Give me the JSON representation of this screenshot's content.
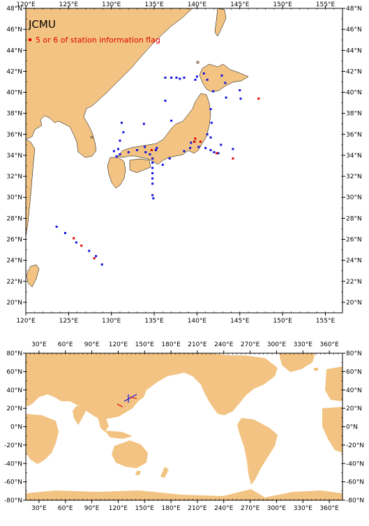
{
  "map1": {
    "title": "JCMU",
    "legend_label": "5 or 6 of station information flag",
    "legend_color": "#e00000",
    "land_color": "#f2c382",
    "lon_ticks": [
      "120°E",
      "125°E",
      "130°E",
      "135°E",
      "140°E",
      "145°E",
      "150°E",
      "155°E"
    ],
    "lat_ticks": [
      "20°N",
      "22°N",
      "24°N",
      "26°N",
      "28°N",
      "30°N",
      "32°N",
      "34°N",
      "36°N",
      "38°N",
      "40°N",
      "42°N",
      "44°N",
      "46°N",
      "48°N"
    ],
    "lon_range": [
      120,
      157
    ],
    "lat_range": [
      19,
      48
    ],
    "blue_stations": [
      [
        123.6,
        27.2
      ],
      [
        124.6,
        26.6
      ],
      [
        125.9,
        25.7
      ],
      [
        127.4,
        24.9
      ],
      [
        128.2,
        24.4
      ],
      [
        128.9,
        23.6
      ],
      [
        131.2,
        37.1
      ],
      [
        131.4,
        36.2
      ],
      [
        131.0,
        35.4
      ],
      [
        130.8,
        34.6
      ],
      [
        130.3,
        34.4
      ],
      [
        130.6,
        33.9
      ],
      [
        131.0,
        34.1
      ],
      [
        132.0,
        34.3
      ],
      [
        133.0,
        34.5
      ],
      [
        133.8,
        37.0
      ],
      [
        133.9,
        34.8
      ],
      [
        134.0,
        34.3
      ],
      [
        134.5,
        34.1
      ],
      [
        134.8,
        33.7
      ],
      [
        134.8,
        33.3
      ],
      [
        134.8,
        32.8
      ],
      [
        134.8,
        32.3
      ],
      [
        134.8,
        31.8
      ],
      [
        134.8,
        31.3
      ],
      [
        134.8,
        30.2
      ],
      [
        134.9,
        29.9
      ],
      [
        135.2,
        34.5
      ],
      [
        135.3,
        34.7
      ],
      [
        136.0,
        33.1
      ],
      [
        136.3,
        39.2
      ],
      [
        136.3,
        41.4
      ],
      [
        137.0,
        41.4
      ],
      [
        136.8,
        33.7
      ],
      [
        137.0,
        37.3
      ],
      [
        137.6,
        41.4
      ],
      [
        138.0,
        41.3
      ],
      [
        138.5,
        41.4
      ],
      [
        138.5,
        34.4
      ],
      [
        139.2,
        34.7
      ],
      [
        139.3,
        35.2
      ],
      [
        139.7,
        35.3
      ],
      [
        139.8,
        41.2
      ],
      [
        140.0,
        41.5
      ],
      [
        140.2,
        34.8
      ],
      [
        140.8,
        41.8
      ],
      [
        141.2,
        41.2
      ],
      [
        141.0,
        34.7
      ],
      [
        141.6,
        34.5
      ],
      [
        141.6,
        38.4
      ],
      [
        141.7,
        37.1
      ],
      [
        142.0,
        34.3
      ],
      [
        142.5,
        34.2
      ],
      [
        142.8,
        35.0
      ],
      [
        142.9,
        41.6
      ],
      [
        143.3,
        40.9
      ],
      [
        143.4,
        39.5
      ],
      [
        144.2,
        34.6
      ],
      [
        145.0,
        40.2
      ],
      [
        145.1,
        39.4
      ],
      [
        141.9,
        40.1
      ],
      [
        141.2,
        36.0
      ],
      [
        141.6,
        35.7
      ]
    ],
    "red_stations": [
      [
        139.8,
        35.6
      ],
      [
        139.7,
        35.3
      ],
      [
        134.7,
        34.5
      ],
      [
        140.4,
        35.3
      ],
      [
        142.3,
        34.2
      ],
      [
        144.2,
        33.7
      ],
      [
        147.2,
        39.4
      ],
      [
        125.6,
        26.1
      ],
      [
        126.5,
        25.4
      ],
      [
        128.0,
        24.2
      ]
    ]
  },
  "map2": {
    "land_color": "#f2c382",
    "lon_ticks": [
      "30°E",
      "60°E",
      "90°E",
      "120°E",
      "150°E",
      "180°E",
      "210°E",
      "240°E",
      "270°E",
      "300°E",
      "330°E",
      "360°E"
    ],
    "lat_ticks": [
      "-80°N",
      "-60°N",
      "-40°N",
      "-20°N",
      "0°N",
      "20°N",
      "40°N",
      "60°N",
      "80°N"
    ],
    "lon_range": [
      15,
      375
    ],
    "lat_range": [
      -80,
      80
    ]
  }
}
